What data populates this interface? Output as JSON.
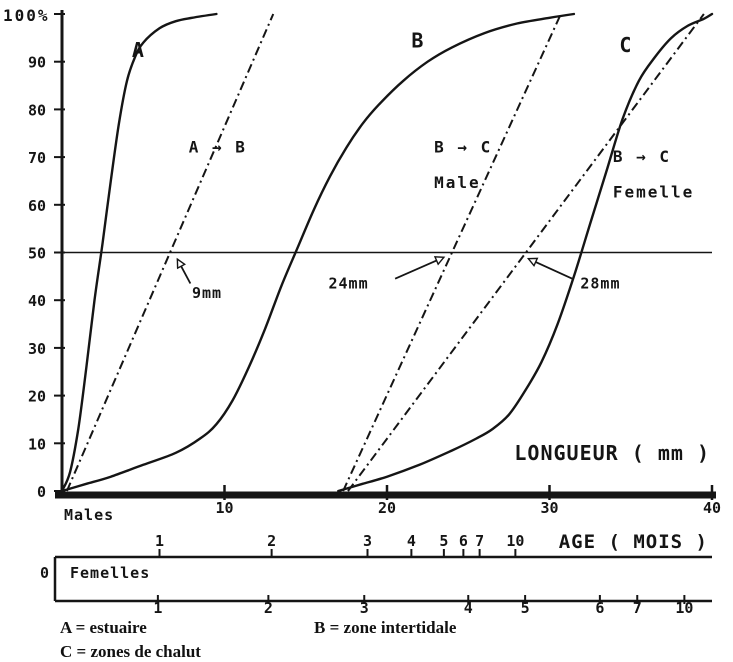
{
  "legend": {
    "a": "A = estuaire",
    "b": "B = zone intertidale",
    "c": "C = zones de chalut"
  },
  "chart_data": {
    "type": "line",
    "title": "",
    "xlabel": "LONGUEUR ( mm )",
    "ylabel": "%",
    "xlim": [
      0,
      40
    ],
    "ylim": [
      0,
      100
    ],
    "grid": false,
    "ink": "#151515",
    "x_ticks": [
      10,
      20,
      30,
      40
    ],
    "y_ticks": [
      0,
      10,
      20,
      30,
      40,
      50,
      60,
      70,
      80,
      90,
      100
    ],
    "y_top_label": "100%",
    "reference_line": {
      "y": 50
    },
    "series": [
      {
        "name": "curve-A",
        "label": "A",
        "zone": "estuaire",
        "label_at": [
          4.3,
          91
        ],
        "points": [
          [
            0,
            0
          ],
          [
            0.5,
            4
          ],
          [
            1,
            13
          ],
          [
            1.5,
            26
          ],
          [
            2,
            40
          ],
          [
            2.5,
            52
          ],
          [
            3,
            65
          ],
          [
            3.5,
            77
          ],
          [
            4,
            86
          ],
          [
            4.5,
            91
          ],
          [
            5,
            94
          ],
          [
            6,
            97
          ],
          [
            7,
            98.5
          ],
          [
            8,
            99.2
          ],
          [
            9.5,
            100
          ]
        ]
      },
      {
        "name": "curve-B",
        "label": "B",
        "zone": "zone intertidale",
        "label_at": [
          21.5,
          93
        ],
        "points": [
          [
            0,
            0
          ],
          [
            1.5,
            1.5
          ],
          [
            3,
            3
          ],
          [
            5,
            5.5
          ],
          [
            7,
            8
          ],
          [
            8.5,
            11
          ],
          [
            9.5,
            14
          ],
          [
            10.5,
            19
          ],
          [
            11.5,
            26
          ],
          [
            12.5,
            34
          ],
          [
            13.5,
            43
          ],
          [
            14.5,
            51
          ],
          [
            15.5,
            59
          ],
          [
            16.5,
            66
          ],
          [
            17.5,
            72
          ],
          [
            18.5,
            77
          ],
          [
            19.5,
            81
          ],
          [
            21,
            86
          ],
          [
            22.5,
            90
          ],
          [
            24,
            93
          ],
          [
            26,
            96
          ],
          [
            28,
            98
          ],
          [
            30,
            99.2
          ],
          [
            31.5,
            100
          ]
        ]
      },
      {
        "name": "curve-C",
        "label": "C",
        "zone": "zones de chalut",
        "label_at": [
          34.3,
          92
        ],
        "points": [
          [
            17,
            0
          ],
          [
            18.5,
            1.5
          ],
          [
            20,
            3
          ],
          [
            22,
            5.5
          ],
          [
            24,
            8.5
          ],
          [
            25.5,
            11
          ],
          [
            26.5,
            13
          ],
          [
            27.5,
            16
          ],
          [
            28.5,
            21
          ],
          [
            29.5,
            27
          ],
          [
            30.5,
            35
          ],
          [
            31.5,
            45
          ],
          [
            32.5,
            56
          ],
          [
            33.5,
            67
          ],
          [
            34.5,
            78
          ],
          [
            35.5,
            86
          ],
          [
            36.5,
            91
          ],
          [
            37.5,
            95
          ],
          [
            38.5,
            97.5
          ],
          [
            39.5,
            99
          ],
          [
            40,
            100
          ]
        ]
      }
    ],
    "transition_lines": [
      {
        "name": "A-to-B",
        "label": "A → B",
        "sublabel": "",
        "label_at": [
          7.8,
          71
        ],
        "from": [
          0.3,
          0
        ],
        "to": [
          13,
          100
        ],
        "crossing": "9mm"
      },
      {
        "name": "B-to-C-male",
        "label": "B → C",
        "sublabel": "Male",
        "label_at": [
          22.9,
          71
        ],
        "from": [
          17.3,
          0
        ],
        "to": [
          30.7,
          100
        ],
        "crossing": "24mm"
      },
      {
        "name": "B-to-C-femelle",
        "label": "B → C",
        "sublabel": "Femelle",
        "label_at": [
          33.9,
          69
        ],
        "from": [
          17.6,
          0
        ],
        "to": [
          39.5,
          100
        ],
        "crossing": "28mm"
      }
    ],
    "annotations": [
      {
        "text": "9mm",
        "text_at": [
          8.0,
          40.5
        ],
        "arrow_from": [
          7.9,
          43.5
        ],
        "arrow_to": [
          7.1,
          48.6
        ]
      },
      {
        "text": "24mm",
        "text_at": [
          16.4,
          42.5
        ],
        "arrow_from": [
          20.5,
          44.5
        ],
        "arrow_to": [
          23.5,
          49.0
        ]
      },
      {
        "text": "28mm",
        "text_at": [
          31.9,
          42.5
        ],
        "arrow_from": [
          31.4,
          44.5
        ],
        "arrow_to": [
          28.7,
          48.7
        ]
      }
    ],
    "age_scales": [
      {
        "name": "males",
        "label": "Males",
        "axis_label": "AGE ( MOIS )",
        "ticks": [
          {
            "age": "1",
            "mm": 6.0
          },
          {
            "age": "2",
            "mm": 12.9
          },
          {
            "age": "3",
            "mm": 18.8
          },
          {
            "age": "4",
            "mm": 21.5
          },
          {
            "age": "5",
            "mm": 23.5
          },
          {
            "age": "6",
            "mm": 24.7
          },
          {
            "age": "7",
            "mm": 25.7
          },
          {
            "age": "10",
            "mm": 27.9
          }
        ]
      },
      {
        "name": "femelles",
        "label": "Femelles",
        "origin_label": "0",
        "ticks": [
          {
            "age": "1",
            "mm": 5.9
          },
          {
            "age": "2",
            "mm": 12.7
          },
          {
            "age": "3",
            "mm": 18.6
          },
          {
            "age": "4",
            "mm": 25.0
          },
          {
            "age": "5",
            "mm": 28.5
          },
          {
            "age": "6",
            "mm": 33.1
          },
          {
            "age": "7",
            "mm": 35.4
          },
          {
            "age": "10",
            "mm": 38.3
          }
        ]
      }
    ]
  }
}
